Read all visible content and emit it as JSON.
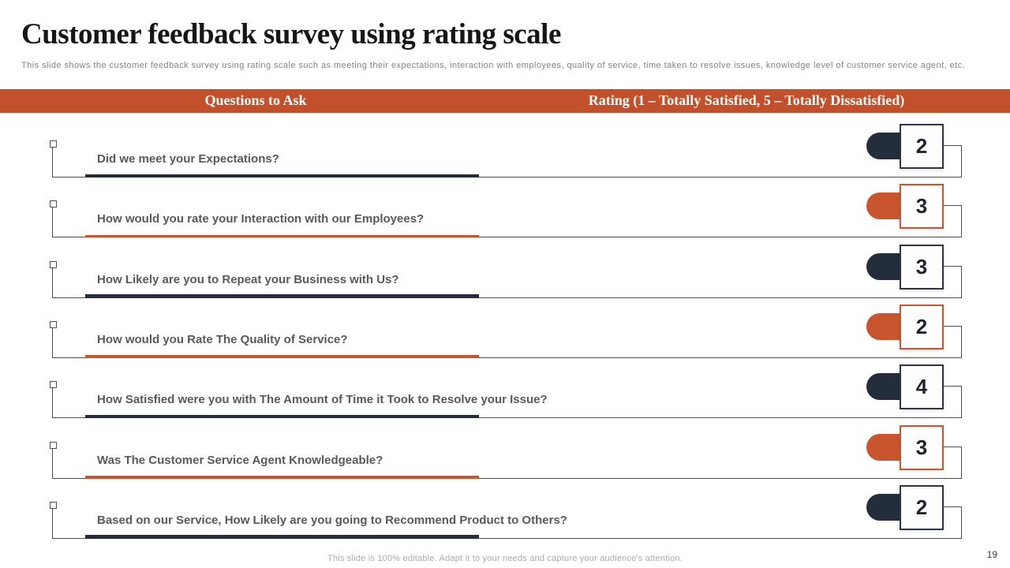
{
  "header": {
    "title": "Customer feedback survey using rating scale",
    "subtitle": "This slide shows the customer feedback survey using rating scale such as meeting their expectations, interaction with employees, quality of service, time taken to resolve issues, knowledge level of customer service agent, etc."
  },
  "table": {
    "questions_header": "Questions to Ask",
    "rating_header": "Rating (1 – Totally Satisfied, 5 – Totally Dissatisfied)"
  },
  "rows": [
    {
      "question": "Did we meet your Expectations?",
      "rating": "2",
      "theme": "navy"
    },
    {
      "question": "How would you rate your Interaction with our Employees?",
      "rating": "3",
      "theme": "orange"
    },
    {
      "question": "How Likely are you to Repeat your Business with Us?",
      "rating": "3",
      "theme": "navy"
    },
    {
      "question": "How would you Rate The Quality of Service?",
      "rating": "2",
      "theme": "orange"
    },
    {
      "question": "How Satisfied were you with The Amount of Time it Took to Resolve your Issue?",
      "rating": "4",
      "theme": "navy"
    },
    {
      "question": "Was The Customer Service Agent Knowledgeable?",
      "rating": "3",
      "theme": "orange"
    },
    {
      "question": "Based on our Service, How Likely are you going to Recommend Product to Others?",
      "rating": "2",
      "theme": "navy"
    }
  ],
  "footer": {
    "note": "This slide is 100% editable. Adapt it to your needs and capture your audience's attention.",
    "page_number": "19"
  },
  "colors": {
    "orange": "#c2512b",
    "orange_bright": "#c9552f",
    "navy": "#242d3c",
    "question_text": "#595959",
    "line_gray": "#4d4d4d",
    "band_text": "#ffffff"
  }
}
